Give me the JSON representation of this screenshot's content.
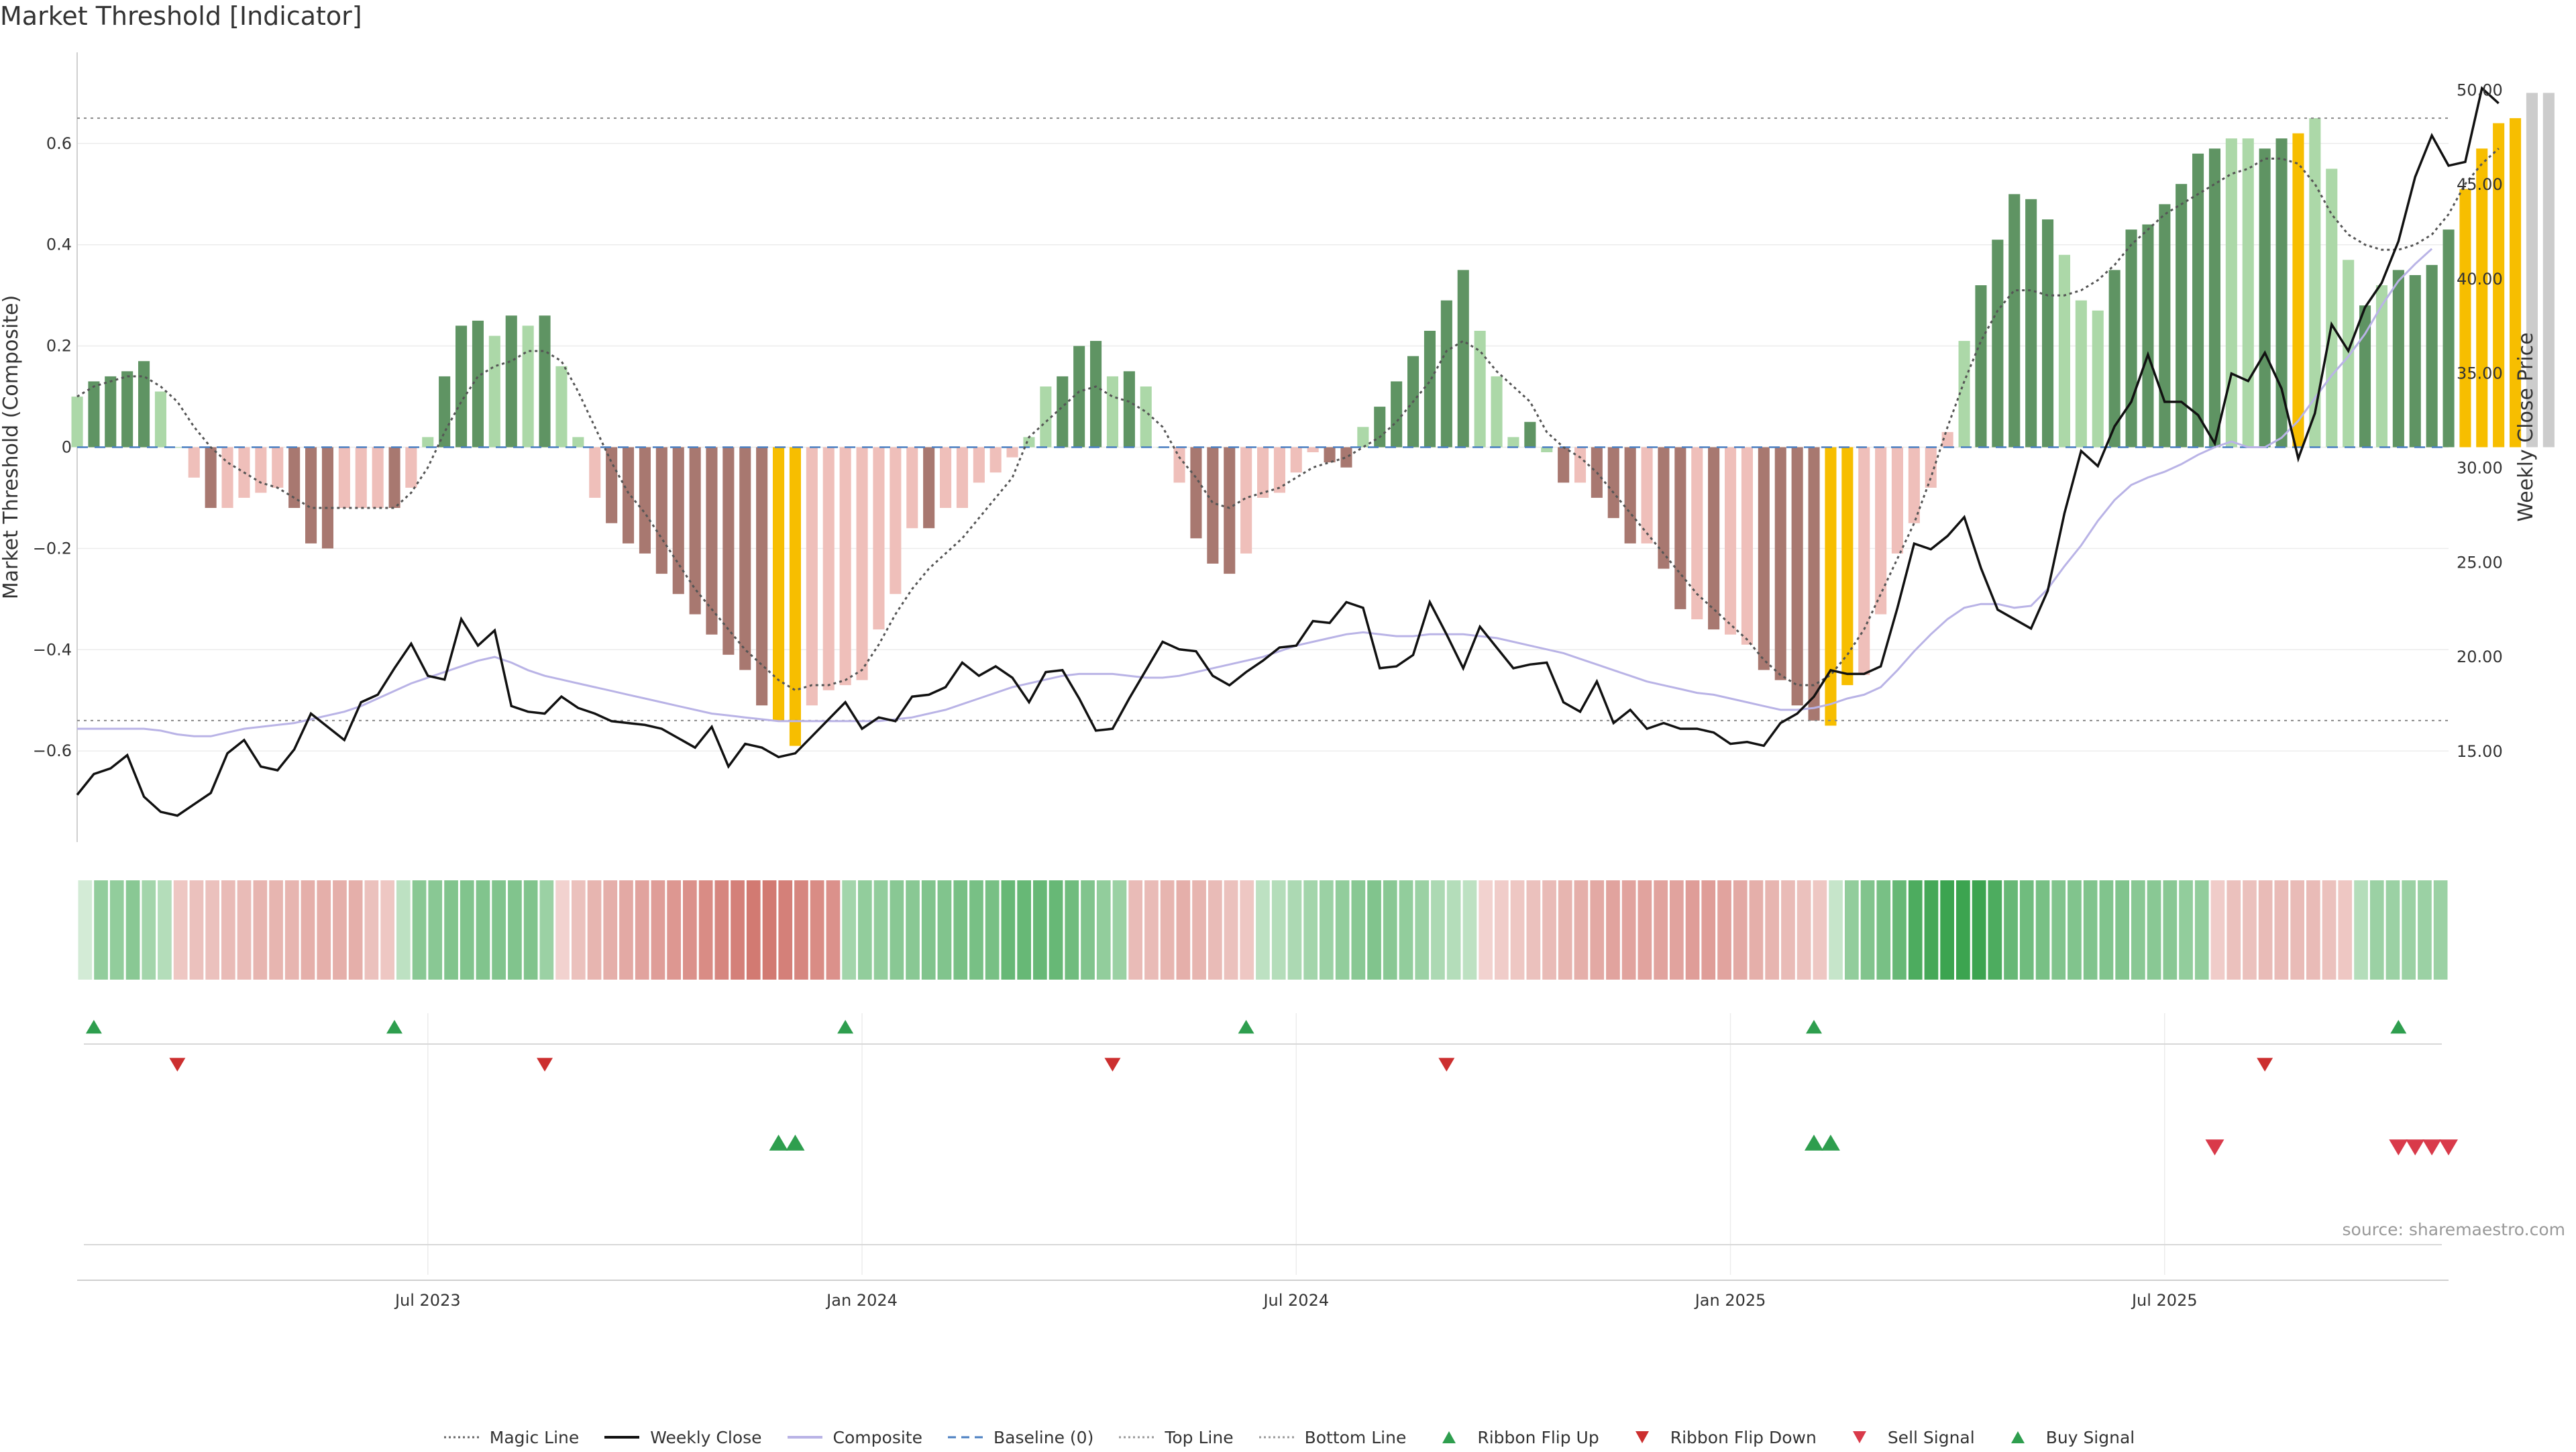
{
  "title": "Market Threshold [Indicator]",
  "source": "source: sharemaestro.com",
  "legend": [
    {
      "label": "Magic Line",
      "kind": "dotted",
      "color": "#666666"
    },
    {
      "label": "Weekly Close",
      "kind": "solid",
      "color": "#111111"
    },
    {
      "label": "Composite",
      "kind": "solid",
      "color": "#b9b3e6"
    },
    {
      "label": "Baseline (0)",
      "kind": "dashed",
      "color": "#4a7fc1"
    },
    {
      "label": "Top Line",
      "kind": "dotted",
      "color": "#999999"
    },
    {
      "label": "Bottom Line",
      "kind": "dotted",
      "color": "#999999"
    },
    {
      "label": "Ribbon Flip Up",
      "kind": "tri-up",
      "color": "#2e9e4e"
    },
    {
      "label": "Ribbon Flip Down",
      "kind": "tri-down",
      "color": "#cc2f2f"
    },
    {
      "label": "Sell Signal",
      "kind": "tri-down",
      "color": "#d93a4a"
    },
    {
      "label": "Buy Signal",
      "kind": "tri-up",
      "color": "#2e9e4e"
    }
  ],
  "chart_data": {
    "type": "bar",
    "title": "Market Threshold [Indicator]",
    "ylabel": "Market Threshold (Composite)",
    "y2label": "Weekly Close Price",
    "ylim": [
      -0.78,
      0.78
    ],
    "y2lim": [
      10.2,
      52.0
    ],
    "yticks": [
      0.6,
      0.4,
      0.2,
      0,
      -0.2,
      -0.4,
      -0.6
    ],
    "ytick_labels": [
      "0.6",
      "0.4",
      "0.2",
      "0",
      "−0.2",
      "−0.4",
      "−0.6"
    ],
    "y2ticks": [
      50,
      45,
      40,
      35,
      30,
      25,
      20,
      15
    ],
    "y2tick_labels": [
      "50.00",
      "45.00",
      "40.00",
      "35.00",
      "30.00",
      "25.00",
      "20.00",
      "15.00"
    ],
    "top_line": 0.65,
    "bottom_line": -0.54,
    "x_start_week": 0,
    "x_end_week": 142,
    "xticks": [
      {
        "week": 21,
        "label": "Jul 2023"
      },
      {
        "week": 47,
        "label": "Jan 2024"
      },
      {
        "week": 73,
        "label": "Jul 2024"
      },
      {
        "week": 99,
        "label": "Jan 2025"
      },
      {
        "week": 125,
        "label": "Jul 2025"
      }
    ],
    "series": [
      {
        "name": "Composite Bars",
        "values": [
          0.1,
          0.13,
          0.14,
          0.15,
          0.17,
          0.11,
          0.0,
          -0.06,
          -0.12,
          -0.12,
          -0.1,
          -0.09,
          -0.08,
          -0.12,
          -0.19,
          -0.2,
          -0.12,
          -0.12,
          -0.12,
          -0.12,
          -0.08,
          0.02,
          0.14,
          0.24,
          0.25,
          0.22,
          0.26,
          0.24,
          0.26,
          0.16,
          0.02,
          -0.1,
          -0.15,
          -0.19,
          -0.21,
          -0.25,
          -0.29,
          -0.33,
          -0.37,
          -0.41,
          -0.44,
          -0.51,
          -0.54,
          -0.59,
          -0.51,
          -0.48,
          -0.47,
          -0.46,
          -0.36,
          -0.29,
          -0.16,
          -0.16,
          -0.12,
          -0.12,
          -0.07,
          -0.05,
          -0.02,
          0.02,
          0.12,
          0.14,
          0.2,
          0.21,
          0.14,
          0.15,
          0.12,
          0.0,
          -0.07,
          -0.18,
          -0.23,
          -0.25,
          -0.21,
          -0.1,
          -0.09,
          -0.05,
          -0.01,
          -0.03,
          -0.04,
          0.04,
          0.08,
          0.13,
          0.18,
          0.23,
          0.29,
          0.35,
          0.23,
          0.14,
          0.02,
          0.05,
          -0.01,
          -0.07,
          -0.07,
          -0.1,
          -0.14,
          -0.19,
          -0.19,
          -0.24,
          -0.32,
          -0.34,
          -0.36,
          -0.37,
          -0.39,
          -0.44,
          -0.46,
          -0.51,
          -0.54,
          -0.55,
          -0.47,
          -0.45,
          -0.33,
          -0.21,
          -0.15,
          -0.08,
          0.03,
          0.21,
          0.32,
          0.41,
          0.5,
          0.49,
          0.45,
          0.38,
          0.29,
          0.27,
          0.35,
          0.43,
          0.44,
          0.48,
          0.52,
          0.58,
          0.59,
          0.61,
          0.61,
          0.59,
          0.61,
          0.62,
          0.65,
          0.55,
          0.37,
          0.28,
          0.32,
          0.35,
          0.34,
          0.36,
          0.43,
          0.51,
          0.59,
          0.64,
          0.65,
          0.7,
          0.7
        ]
      },
      {
        "name": "Bar Colour Class",
        "values": [
          "lg",
          "dg",
          "dg",
          "dg",
          "dg",
          "lg",
          "lg",
          "lr",
          "dr",
          "lr",
          "lr",
          "lr",
          "lr",
          "dr",
          "dr",
          "dr",
          "lr",
          "lr",
          "lr",
          "dr",
          "lr",
          "lg",
          "dg",
          "dg",
          "dg",
          "lg",
          "dg",
          "lg",
          "dg",
          "lg",
          "lg",
          "lr",
          "dr",
          "dr",
          "dr",
          "dr",
          "dr",
          "dr",
          "dr",
          "dr",
          "dr",
          "dr",
          "y",
          "y",
          "lr",
          "lr",
          "lr",
          "lr",
          "lr",
          "lr",
          "lr",
          "dr",
          "lr",
          "lr",
          "lr",
          "lr",
          "lr",
          "lg",
          "lg",
          "dg",
          "dg",
          "dg",
          "lg",
          "dg",
          "lg",
          "lg",
          "lr",
          "dr",
          "dr",
          "dr",
          "lr",
          "lr",
          "lr",
          "lr",
          "lr",
          "dr",
          "dr",
          "lg",
          "dg",
          "dg",
          "dg",
          "dg",
          "dg",
          "dg",
          "lg",
          "lg",
          "lg",
          "dg",
          "lg",
          "dr",
          "lr",
          "dr",
          "dr",
          "dr",
          "lr",
          "dr",
          "dr",
          "lr",
          "dr",
          "lr",
          "lr",
          "dr",
          "dr",
          "dr",
          "dr",
          "y",
          "y",
          "lr",
          "lr",
          "lr",
          "lr",
          "lr",
          "lr",
          "lg",
          "dg",
          "dg",
          "dg",
          "dg",
          "dg",
          "lg",
          "lg",
          "lg",
          "dg",
          "dg",
          "dg",
          "dg",
          "dg",
          "dg",
          "dg",
          "lg",
          "lg",
          "dg",
          "dg",
          "y",
          "lg",
          "lg",
          "lg",
          "dg",
          "lg",
          "dg",
          "dg",
          "dg",
          "dg",
          "y",
          "y",
          "y",
          "y"
        ]
      },
      {
        "name": "Magic Line",
        "values": [
          0.1,
          0.12,
          0.13,
          0.14,
          0.14,
          0.12,
          0.09,
          0.04,
          0.0,
          -0.03,
          -0.05,
          -0.07,
          -0.08,
          -0.1,
          -0.12,
          -0.12,
          -0.12,
          -0.12,
          -0.12,
          -0.12,
          -0.09,
          -0.04,
          0.03,
          0.09,
          0.14,
          0.16,
          0.17,
          0.19,
          0.19,
          0.17,
          0.11,
          0.04,
          -0.03,
          -0.09,
          -0.13,
          -0.18,
          -0.23,
          -0.28,
          -0.32,
          -0.36,
          -0.4,
          -0.43,
          -0.46,
          -0.48,
          -0.47,
          -0.47,
          -0.46,
          -0.44,
          -0.39,
          -0.33,
          -0.28,
          -0.24,
          -0.21,
          -0.18,
          -0.14,
          -0.1,
          -0.06,
          0.02,
          0.05,
          0.08,
          0.11,
          0.12,
          0.1,
          0.09,
          0.07,
          0.04,
          -0.02,
          -0.06,
          -0.11,
          -0.12,
          -0.1,
          -0.09,
          -0.08,
          -0.06,
          -0.04,
          -0.03,
          -0.02,
          0.0,
          0.02,
          0.05,
          0.09,
          0.13,
          0.19,
          0.21,
          0.19,
          0.15,
          0.12,
          0.09,
          0.03,
          0.0,
          -0.02,
          -0.05,
          -0.09,
          -0.13,
          -0.17,
          -0.21,
          -0.25,
          -0.29,
          -0.32,
          -0.35,
          -0.38,
          -0.42,
          -0.45,
          -0.47,
          -0.47,
          -0.45,
          -0.41,
          -0.36,
          -0.29,
          -0.22,
          -0.15,
          -0.06,
          0.04,
          0.13,
          0.21,
          0.27,
          0.31,
          0.31,
          0.3,
          0.3,
          0.31,
          0.33,
          0.36,
          0.4,
          0.43,
          0.46,
          0.48,
          0.5,
          0.52,
          0.54,
          0.55,
          0.57,
          0.57,
          0.56,
          0.52,
          0.46,
          0.42,
          0.4,
          0.39,
          0.39,
          0.4,
          0.42,
          0.46,
          0.52,
          0.56,
          0.59
        ]
      },
      {
        "name": "Weekly Close",
        "values": [
          12.7,
          13.8,
          14.1,
          14.8,
          12.6,
          11.8,
          11.6,
          12.2,
          12.8,
          14.9,
          15.6,
          14.2,
          14.0,
          15.1,
          17.0,
          16.3,
          15.6,
          17.6,
          18.0,
          19.4,
          20.7,
          19.0,
          18.8,
          22.0,
          20.6,
          21.4,
          17.4,
          17.1,
          17.0,
          17.9,
          17.3,
          17.0,
          16.6,
          16.5,
          16.4,
          16.2,
          15.7,
          15.2,
          16.3,
          14.2,
          15.4,
          15.2,
          14.7,
          14.9,
          15.8,
          16.7,
          17.6,
          16.2,
          16.8,
          16.6,
          17.9,
          18.0,
          18.4,
          19.7,
          19.0,
          19.5,
          18.9,
          17.6,
          19.2,
          19.3,
          17.8,
          16.1,
          16.2,
          17.8,
          19.3,
          20.8,
          20.4,
          20.3,
          19.0,
          18.5,
          19.2,
          19.8,
          20.5,
          20.6,
          21.9,
          21.8,
          22.9,
          22.6,
          19.4,
          19.5,
          20.1,
          22.9,
          21.2,
          19.4,
          21.6,
          20.5,
          19.4,
          19.6,
          19.7,
          17.6,
          17.1,
          18.7,
          16.5,
          17.2,
          16.2,
          16.5,
          16.2,
          16.2,
          16.0,
          15.4,
          15.5,
          15.3,
          16.5,
          17.0,
          17.9,
          19.3,
          19.1,
          19.1,
          19.5,
          22.6,
          26.0,
          25.7,
          26.4,
          27.4,
          24.7,
          22.5,
          22.0,
          21.5,
          23.5,
          27.6,
          30.9,
          30.1,
          32.2,
          33.5,
          36.0,
          33.5,
          33.5,
          32.8,
          31.3,
          35.0,
          34.6,
          36.1,
          34.2,
          30.5,
          32.9,
          37.6,
          36.2,
          38.5,
          39.8,
          42.0,
          45.4,
          47.6,
          46.0,
          46.2,
          50.1,
          49.3
        ]
      },
      {
        "name": "Composite",
        "values": [
          16.2,
          16.2,
          16.2,
          16.2,
          16.2,
          16.1,
          15.9,
          15.8,
          15.8,
          16.0,
          16.2,
          16.3,
          16.4,
          16.5,
          16.7,
          16.9,
          17.1,
          17.4,
          17.8,
          18.2,
          18.6,
          18.9,
          19.2,
          19.5,
          19.8,
          20.0,
          19.7,
          19.3,
          19.0,
          18.8,
          18.6,
          18.4,
          18.2,
          18.0,
          17.8,
          17.6,
          17.4,
          17.2,
          17.0,
          16.9,
          16.8,
          16.7,
          16.6,
          16.6,
          16.6,
          16.6,
          16.6,
          16.6,
          16.6,
          16.7,
          16.8,
          17.0,
          17.2,
          17.5,
          17.8,
          18.1,
          18.4,
          18.6,
          18.8,
          19.0,
          19.1,
          19.1,
          19.1,
          19.0,
          18.9,
          18.9,
          19.0,
          19.2,
          19.4,
          19.6,
          19.8,
          20.0,
          20.3,
          20.6,
          20.8,
          21.0,
          21.2,
          21.3,
          21.2,
          21.1,
          21.1,
          21.2,
          21.2,
          21.2,
          21.1,
          21.0,
          20.8,
          20.6,
          20.4,
          20.2,
          19.9,
          19.6,
          19.3,
          19.0,
          18.7,
          18.5,
          18.3,
          18.1,
          18.0,
          17.8,
          17.6,
          17.4,
          17.2,
          17.2,
          17.3,
          17.5,
          17.8,
          18.0,
          18.4,
          19.3,
          20.3,
          21.2,
          22.0,
          22.6,
          22.8,
          22.8,
          22.6,
          22.7,
          23.6,
          24.8,
          25.9,
          27.2,
          28.3,
          29.1,
          29.5,
          29.8,
          30.2,
          30.7,
          31.1,
          31.4,
          31.1,
          31.1,
          31.6,
          32.5,
          33.7,
          34.9,
          35.9,
          37.1,
          38.6,
          39.9,
          40.8,
          41.6
        ]
      }
    ],
    "ribbon": {
      "type": "heatmap",
      "values": [
        0.12,
        0.5,
        0.5,
        0.55,
        0.4,
        0.3,
        -0.25,
        -0.3,
        -0.3,
        -0.35,
        -0.35,
        -0.4,
        -0.4,
        -0.4,
        -0.45,
        -0.45,
        -0.45,
        -0.45,
        -0.3,
        -0.25,
        0.25,
        0.55,
        0.55,
        0.6,
        0.6,
        0.6,
        0.6,
        0.6,
        0.6,
        0.45,
        -0.15,
        -0.3,
        -0.4,
        -0.45,
        -0.5,
        -0.55,
        -0.6,
        -0.65,
        -0.7,
        -0.75,
        -0.8,
        -0.85,
        -0.9,
        -0.9,
        -0.85,
        -0.8,
        -0.75,
        -0.7,
        0.4,
        0.5,
        0.5,
        0.55,
        0.55,
        0.6,
        0.6,
        0.65,
        0.65,
        0.65,
        0.75,
        0.75,
        0.75,
        0.75,
        0.7,
        0.6,
        0.5,
        0.45,
        -0.35,
        -0.35,
        -0.4,
        -0.45,
        -0.4,
        -0.35,
        -0.3,
        -0.25,
        0.25,
        0.3,
        0.35,
        0.4,
        0.45,
        0.5,
        0.55,
        0.6,
        0.55,
        0.5,
        0.45,
        0.35,
        0.3,
        0.25,
        -0.15,
        -0.2,
        -0.25,
        -0.3,
        -0.35,
        -0.4,
        -0.45,
        -0.5,
        -0.55,
        -0.55,
        -0.55,
        -0.55,
        -0.55,
        -0.6,
        -0.6,
        -0.55,
        -0.5,
        -0.45,
        -0.4,
        -0.35,
        -0.3,
        -0.25,
        0.2,
        0.5,
        0.6,
        0.65,
        0.75,
        0.9,
        0.95,
        1.0,
        1.0,
        1.0,
        0.9,
        0.75,
        0.7,
        0.65,
        0.6,
        0.6,
        0.6,
        0.6,
        0.6,
        0.55,
        0.55,
        0.55,
        0.5,
        0.5,
        -0.2,
        -0.3,
        -0.3,
        -0.35,
        -0.35,
        -0.35,
        -0.35,
        -0.3,
        -0.25,
        0.3,
        0.45,
        0.45,
        0.45,
        0.45,
        0.45
      ]
    },
    "ribbon_flip_up_weeks": [
      1,
      19,
      46,
      70,
      104,
      139
    ],
    "ribbon_flip_down_weeks": [
      6,
      28,
      62,
      82,
      131
    ],
    "buy_signal_weeks": [
      42,
      43,
      104,
      105
    ],
    "sell_signal_weeks": [
      128,
      139,
      140,
      141,
      142
    ]
  }
}
